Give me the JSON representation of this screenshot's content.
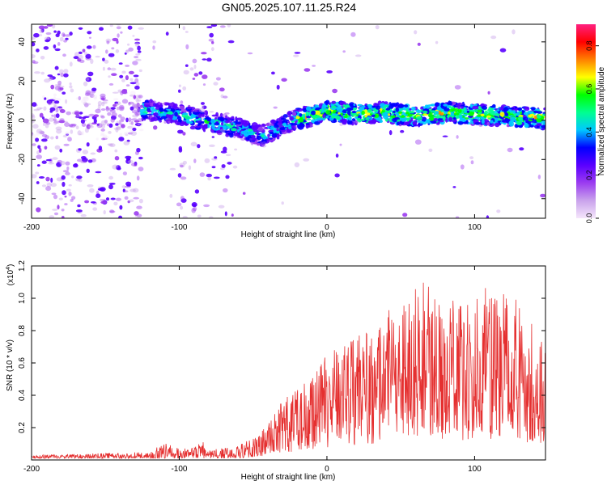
{
  "title": "GN05.2025.107.11.25.R24",
  "colors": {
    "line": "#e53030",
    "axis": "#000000",
    "background": "#ffffff"
  },
  "chart_data": [
    {
      "type": "heatmap",
      "xlabel": "Height of straight line (km)",
      "ylabel": "Frequency (Hz)",
      "xlim": [
        -200,
        148
      ],
      "ylim": [
        -50,
        49
      ],
      "x_ticks": [
        -200,
        -100,
        0,
        100
      ],
      "y_ticks": [
        -40,
        -20,
        0,
        20,
        40
      ],
      "colorbar": {
        "label": "Normalized spectral amplitude",
        "range": [
          0,
          0.9
        ],
        "ticks": [
          "0.0",
          "0.2",
          "0.4",
          "0.6",
          "0.8"
        ],
        "colors": [
          "#f5e6fb",
          "#c9a3ec",
          "#9b3cf0",
          "#5a00ff",
          "#0000ff",
          "#00c8ff",
          "#00ff90",
          "#00ff00",
          "#ffff00",
          "#ff8000",
          "#ff0000",
          "#ff2080"
        ]
      },
      "ridge": {
        "x": [
          -200,
          -180,
          -160,
          -140,
          -130,
          -120,
          -100,
          -80,
          -60,
          -45,
          -30,
          -20,
          -10,
          0,
          20,
          40,
          60,
          80,
          100,
          120,
          148
        ],
        "y": [
          2,
          2,
          1,
          2,
          6,
          5,
          3,
          -1,
          -4,
          -8,
          -3,
          1,
          2,
          5,
          3,
          4,
          2,
          4,
          3,
          2,
          1
        ]
      }
    },
    {
      "type": "line",
      "xlabel": "Height of straight line (km)",
      "ylabel": "SNR (10 * v/v)",
      "y_multiplier": "(x10",
      "y_multiplier_exp": "4",
      "y_multiplier_close": ")",
      "xlim": [
        -200,
        148
      ],
      "ylim": [
        0,
        1.2
      ],
      "x_ticks": [
        -200,
        -100,
        0,
        100
      ],
      "y_ticks": [
        "0.2",
        "0.4",
        "0.6",
        "0.8",
        "1.0",
        "1.2"
      ],
      "series": [
        {
          "envelope_x": [
            -200,
            -120,
            -110,
            -100,
            -90,
            -85,
            -80,
            -60,
            -50,
            -40,
            -30,
            -20,
            -10,
            0,
            10,
            20,
            28,
            40,
            60,
            80,
            100,
            120,
            148
          ],
          "envelope_y": [
            0.03,
            0.05,
            0.11,
            0.07,
            0.08,
            0.13,
            0.06,
            0.09,
            0.14,
            0.22,
            0.38,
            0.45,
            0.55,
            0.65,
            0.72,
            0.78,
            0.8,
            0.95,
            1.2,
            0.98,
            1.05,
            1.1,
            0.75
          ]
        }
      ]
    }
  ]
}
